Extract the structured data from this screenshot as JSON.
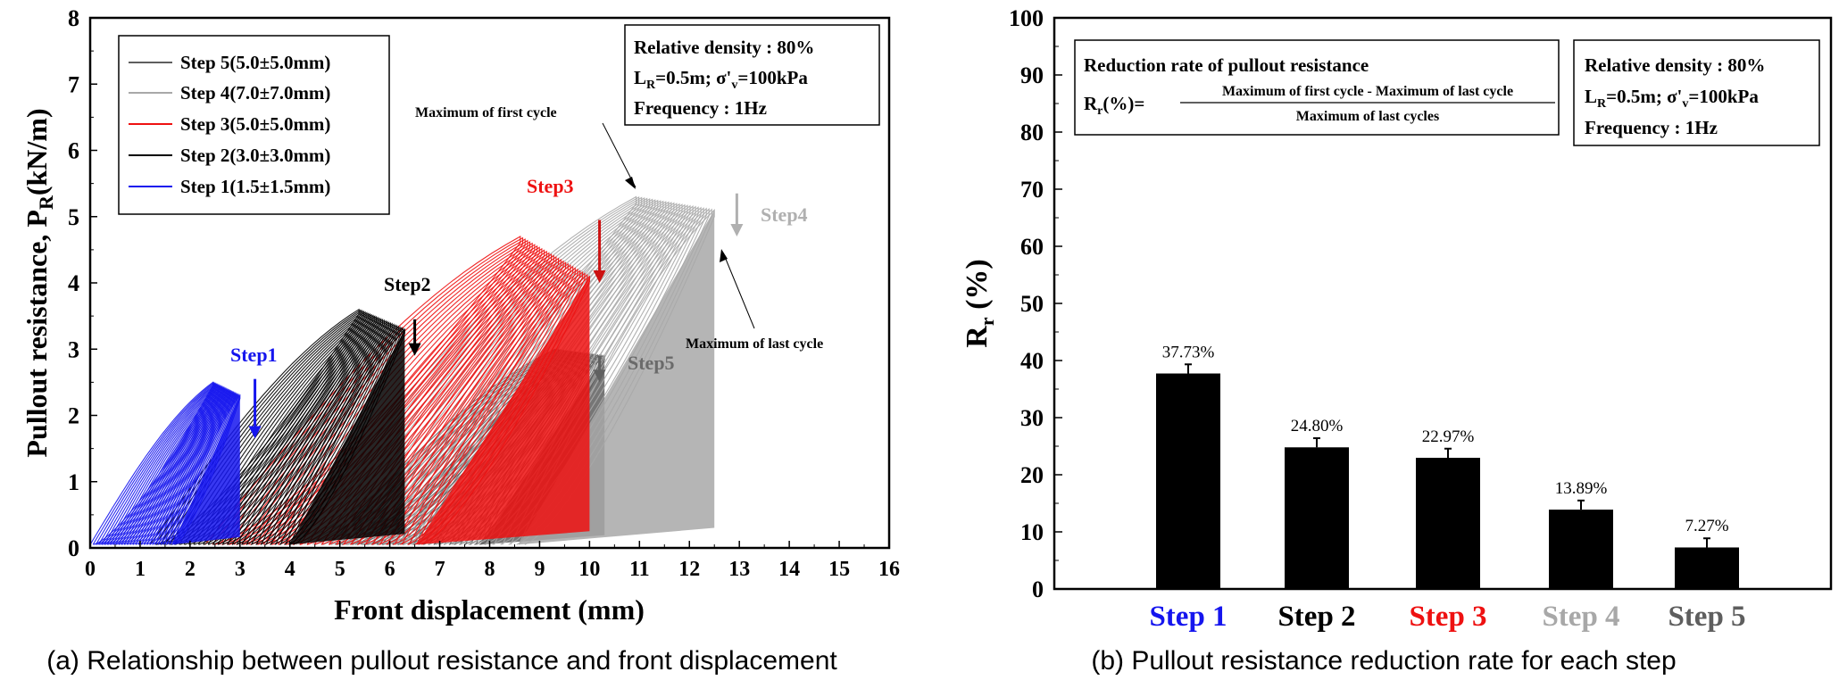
{
  "colors": {
    "step1": "#1515ee",
    "step2": "#000000",
    "step3": "#ee1111",
    "step4": "#a8a8a8",
    "step5": "#5e5e5e",
    "arrow_step2": "#000000",
    "arrow_step3": "#cc1111",
    "arrow_step4": "#b0b0b0",
    "arrow_step5": "#606060"
  },
  "chart_data": [
    {
      "type": "line",
      "caption": "(a) Relationship between pullout resistance and front displacement",
      "title": "",
      "xlabel": "Front displacement (mm)",
      "ylabel_prefix": "Pullout resistance, P",
      "ylabel_sub": "R",
      "ylabel_suffix": "(kN/m)",
      "xlim": [
        0,
        16
      ],
      "ylim": [
        0,
        8
      ],
      "xticks": [
        "0",
        "1",
        "2",
        "3",
        "4",
        "5",
        "6",
        "7",
        "8",
        "9",
        "10",
        "11",
        "12",
        "13",
        "14",
        "15",
        "16"
      ],
      "yticks": [
        "0",
        "1",
        "2",
        "3",
        "4",
        "5",
        "6",
        "7",
        "8"
      ],
      "legend_position": "top-left",
      "series": [
        {
          "name": "Step 5(5.0±5.0mm)",
          "key": "step5",
          "x_start": 4.8,
          "x_end": 10.3,
          "peak_first": 3.0,
          "peak_last": 2.9,
          "cycles": 30
        },
        {
          "name": "Step 4(7.0±7.0mm)",
          "key": "step4",
          "x_start": 3.8,
          "x_end": 12.5,
          "peak_first": 5.3,
          "peak_last": 5.1,
          "cycles": 30
        },
        {
          "name": "Step 3(5.0±5.0mm)",
          "key": "step3",
          "x_start": 2.3,
          "x_end": 10.0,
          "peak_first": 4.7,
          "peak_last": 4.1,
          "cycles": 30
        },
        {
          "name": "Step 2(3.0±3.0mm)",
          "key": "step2",
          "x_start": 1.2,
          "x_end": 6.3,
          "peak_first": 3.6,
          "peak_last": 3.3,
          "cycles": 30
        },
        {
          "name": "Step 1(1.5±1.5mm)",
          "key": "step1",
          "x_start": 0.0,
          "x_end": 3.0,
          "peak_first": 2.5,
          "peak_last": 2.3,
          "cycles": 30
        }
      ],
      "info_box": {
        "line1": "Relative density : 80%",
        "line2_prefix": "L",
        "line2_sub": "R",
        "line2_mid": "=0.5m; σ'",
        "line2_sub2": "v",
        "line2_suffix": "=100kPa",
        "line3": "Frequency : 1Hz"
      },
      "annotations": [
        {
          "text": "Step1",
          "key": "step1",
          "x": 3.3,
          "y": 2.85
        },
        {
          "text": "Step2",
          "key": "step2",
          "x": 6.5,
          "y": 3.9
        },
        {
          "text": "Step3",
          "key": "step3",
          "x": 10.2,
          "y": 5.45
        },
        {
          "text": "Step4",
          "key": "step4",
          "x": 12.9,
          "y": 5.15
        },
        {
          "text": "Step5",
          "key": "step5",
          "x": 10.2,
          "y": 3.0
        },
        {
          "text": "Maximum of first cycle",
          "key": "step2",
          "x": 11.1,
          "y": 5.3
        },
        {
          "text": "Maximum of last cycle",
          "key": "step2",
          "x": 12.4,
          "y": 4.5
        }
      ],
      "step_arrows": [
        {
          "key": "step1",
          "x": 3.3,
          "y_top": 2.55,
          "y_bottom": 1.65
        },
        {
          "key": "step2",
          "x": 6.5,
          "y_top": 3.45,
          "y_bottom": 2.9
        },
        {
          "key": "step3",
          "x": 10.2,
          "y_top": 4.95,
          "y_bottom": 4.0
        },
        {
          "key": "step4",
          "x": 12.95,
          "y_top": 5.35,
          "y_bottom": 4.7
        },
        {
          "key": "step5",
          "x": 10.2,
          "y_top": 2.9,
          "y_bottom": 2.5
        }
      ]
    },
    {
      "type": "bar",
      "caption": "(b) Pullout resistance reduction rate for each step",
      "title": "",
      "xlabel": "",
      "ylabel_prefix": "R",
      "ylabel_sub": "r",
      "ylabel_suffix": " (%)",
      "ylim": [
        0,
        100
      ],
      "yticks": [
        "0",
        "10",
        "20",
        "30",
        "40",
        "50",
        "60",
        "70",
        "80",
        "90",
        "100"
      ],
      "categories": [
        "Step 1",
        "Step 2",
        "Step 3",
        "Step 4",
        "Step 5"
      ],
      "category_keys": [
        "step1",
        "step2",
        "step3",
        "step4",
        "step5"
      ],
      "values": [
        37.73,
        24.8,
        22.97,
        13.89,
        7.27
      ],
      "errors": [
        1.6,
        1.6,
        1.6,
        1.6,
        1.6
      ],
      "labels": [
        "37.73%",
        "24.80%",
        "22.97%",
        "13.89%",
        "7.27%"
      ],
      "formula_box": {
        "title": "Reduction rate of pullout resistance",
        "lhs_prefix": "R",
        "lhs_sub": "r",
        "lhs_suffix": "(%)=",
        "numerator": "Maximum of first cycle - Maximum of last cycle",
        "denominator": "Maximum of last cycles"
      },
      "info_box": {
        "line1": "Relative density : 80%",
        "line2_prefix": "L",
        "line2_sub": "R",
        "line2_mid": "=0.5m; σ'",
        "line2_sub2": "v",
        "line2_suffix": "=100kPa",
        "line3": "Frequency : 1Hz"
      }
    }
  ]
}
